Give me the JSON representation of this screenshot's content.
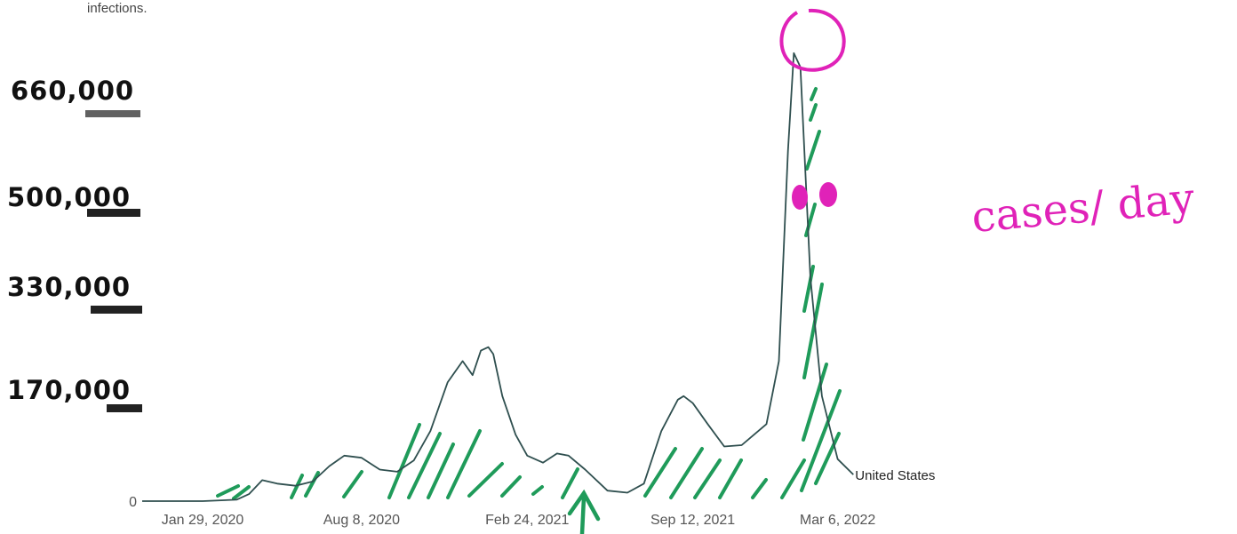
{
  "header": {
    "caption": "infections."
  },
  "annotations": {
    "handwritten_note": "cases/ day",
    "note_color": "#e022b8",
    "hatch_color": "#1f9b5a"
  },
  "chart_data": {
    "type": "line",
    "title": "",
    "xlabel": "",
    "ylabel": "",
    "line_color": "#2f4f4f",
    "grid": false,
    "legend": "end-of-line label",
    "series": [
      {
        "name": "United States",
        "x": [
          "2020-01-29",
          "2020-03-10",
          "2020-03-25",
          "2020-04-10",
          "2020-04-28",
          "2020-05-20",
          "2020-06-10",
          "2020-06-30",
          "2020-07-18",
          "2020-08-08",
          "2020-08-30",
          "2020-09-20",
          "2020-10-10",
          "2020-10-30",
          "2020-11-20",
          "2020-12-08",
          "2020-12-20",
          "2020-12-30",
          "2021-01-08",
          "2021-01-14",
          "2021-01-25",
          "2021-02-10",
          "2021-02-24",
          "2021-03-15",
          "2021-04-01",
          "2021-04-15",
          "2021-05-05",
          "2021-06-01",
          "2021-06-25",
          "2021-07-15",
          "2021-08-05",
          "2021-08-25",
          "2021-09-01",
          "2021-09-12",
          "2021-09-30",
          "2021-10-20",
          "2021-11-10",
          "2021-11-25",
          "2021-12-10",
          "2021-12-25",
          "2022-01-05",
          "2022-01-12",
          "2022-01-20",
          "2022-02-01",
          "2022-02-15",
          "2022-03-06",
          "2022-03-25"
        ],
        "y": [
          0,
          2000,
          10000,
          30000,
          25000,
          22000,
          28000,
          50000,
          65000,
          62000,
          45000,
          42000,
          58000,
          100000,
          170000,
          200000,
          180000,
          215000,
          220000,
          210000,
          150000,
          95000,
          65000,
          55000,
          68000,
          65000,
          45000,
          15000,
          12000,
          25000,
          100000,
          145000,
          150000,
          140000,
          110000,
          78000,
          80000,
          95000,
          110000,
          200000,
          500000,
          640000,
          620000,
          320000,
          150000,
          60000,
          38000
        ]
      }
    ],
    "ticks": {
      "x": [
        {
          "date": "2020-01-29",
          "label": "Jan 29, 2020"
        },
        {
          "date": "2020-08-08",
          "label": "Aug 8, 2020"
        },
        {
          "date": "2021-02-24",
          "label": "Feb 24, 2021"
        },
        {
          "date": "2021-09-12",
          "label": "Sep 12, 2021"
        },
        {
          "date": "2022-03-06",
          "label": "Mar 6, 2022"
        }
      ],
      "y_printed": [
        {
          "value": 0,
          "label": "0"
        }
      ],
      "y_handwritten": [
        {
          "value": 660000,
          "label": "660,000"
        },
        {
          "value": 500000,
          "label": "500,000"
        },
        {
          "value": 330000,
          "label": "330,000"
        },
        {
          "value": 170000,
          "label": "170,000"
        }
      ]
    },
    "xlim": [
      "2020-01-15",
      "2022-03-30"
    ],
    "ylim": [
      0,
      660000
    ]
  }
}
